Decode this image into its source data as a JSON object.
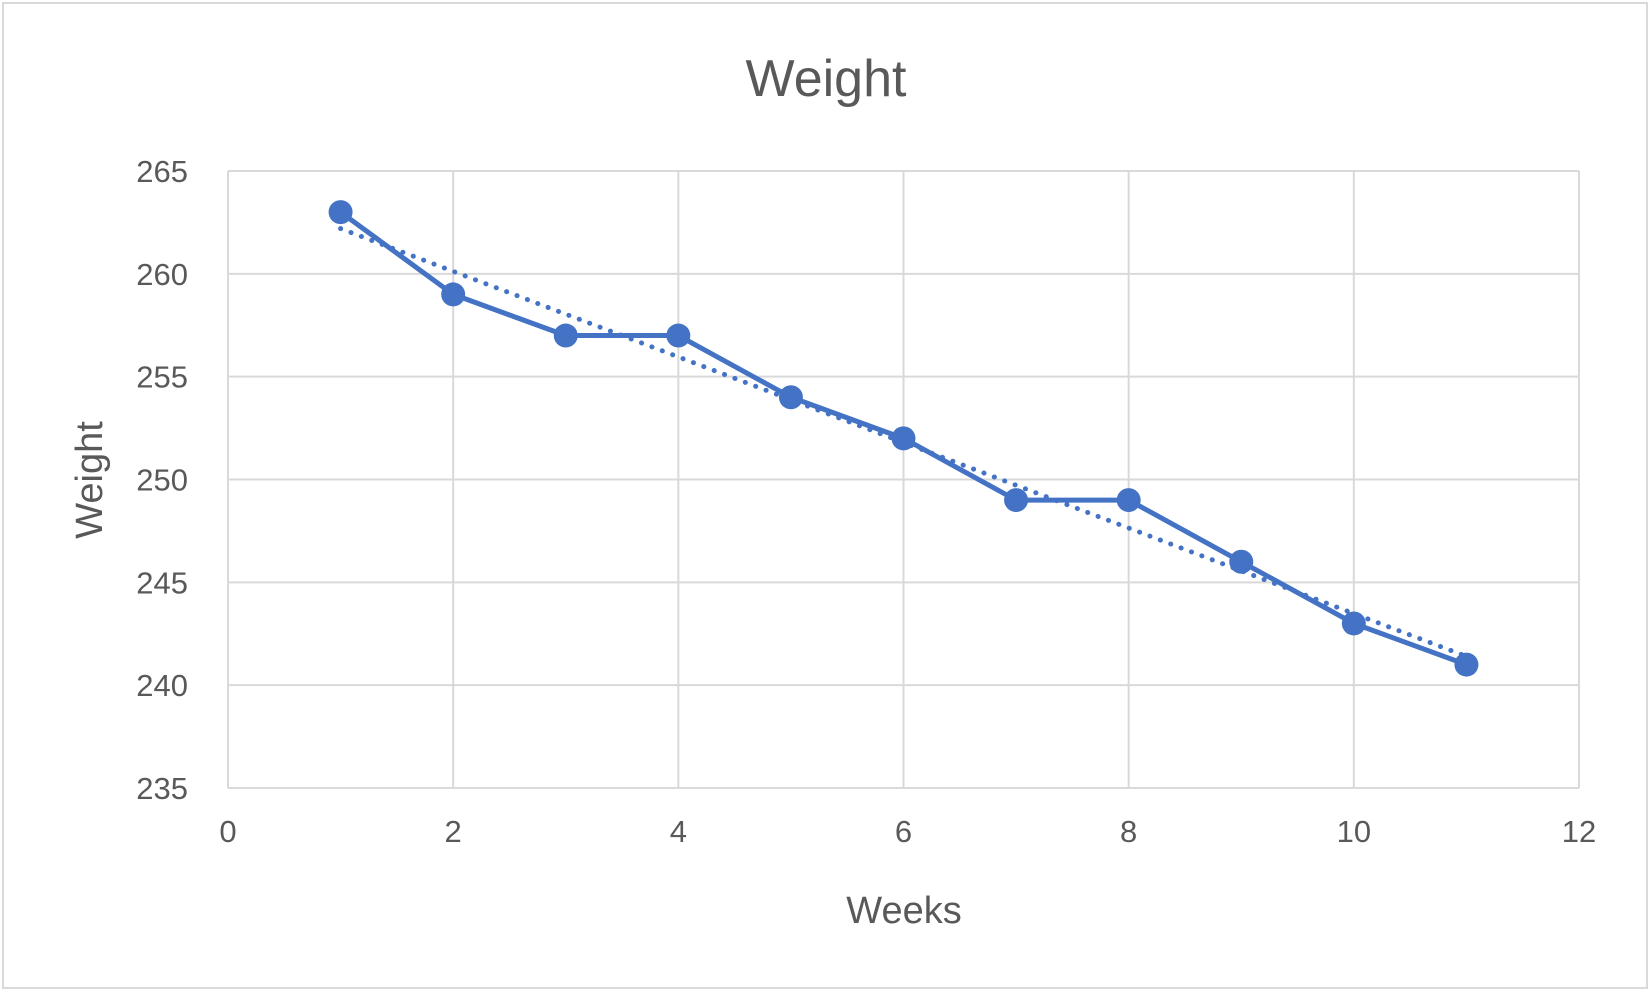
{
  "chart_data": {
    "type": "scatter",
    "title": "Weight",
    "xlabel": "Weeks",
    "ylabel": "Weight",
    "xlim": [
      0,
      12
    ],
    "ylim": [
      235,
      265
    ],
    "xticks": [
      0,
      2,
      4,
      6,
      8,
      10,
      12
    ],
    "yticks": [
      235,
      240,
      245,
      250,
      255,
      260,
      265
    ],
    "grid": true,
    "legend": "none",
    "series": [
      {
        "x": [
          1,
          2,
          3,
          4,
          5,
          6,
          7,
          8,
          9,
          10,
          11
        ],
        "y": [
          263,
          259,
          257,
          257,
          254,
          252,
          249,
          249,
          246,
          243,
          241
        ],
        "style": "solid line with markers",
        "color": "#4472c4"
      }
    ],
    "trendline": {
      "type": "linear",
      "style": "dotted",
      "color": "#4472c4",
      "start": [
        1,
        262.2
      ],
      "end": [
        11,
        241.4
      ]
    }
  }
}
